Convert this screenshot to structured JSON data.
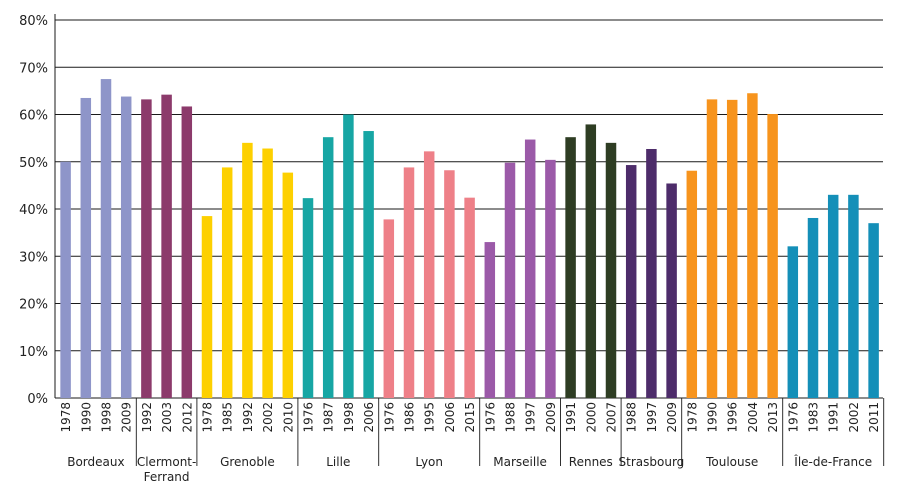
{
  "chart_data": {
    "type": "bar",
    "ylim": [
      0,
      80
    ],
    "y_ticks": [
      "0%",
      "10%",
      "20%",
      "30%",
      "40%",
      "50%",
      "60%",
      "70%",
      "80%"
    ],
    "grid": true,
    "groups": [
      {
        "name": "Bordeaux",
        "color": "#8e95c9",
        "years": [
          "1978",
          "1990",
          "1998",
          "2009"
        ],
        "values": [
          50,
          63.5,
          67.5,
          63.8
        ]
      },
      {
        "name": "Clermont-Ferrand",
        "name_lines": [
          "Clermont-",
          "Ferrand"
        ],
        "color": "#8c3a6b",
        "years": [
          "1992",
          "2003",
          "2012"
        ],
        "values": [
          63.2,
          64.2,
          61.7
        ]
      },
      {
        "name": "Grenoble",
        "color": "#fdd000",
        "years": [
          "1978",
          "1985",
          "1992",
          "2002",
          "2010"
        ],
        "values": [
          38.5,
          48.8,
          54,
          52.8,
          47.7
        ]
      },
      {
        "name": "Lille",
        "color": "#17a6a4",
        "years": [
          "1976",
          "1987",
          "1998",
          "2006"
        ],
        "values": [
          42.3,
          55.2,
          60,
          56.5
        ]
      },
      {
        "name": "Lyon",
        "color": "#ee8088",
        "years": [
          "1976",
          "1986",
          "1995",
          "2006",
          "2015"
        ],
        "values": [
          37.8,
          48.8,
          52.2,
          48.2,
          42.4
        ]
      },
      {
        "name": "Marseille",
        "color": "#9b5aa8",
        "years": [
          "1976",
          "1988",
          "1997",
          "2009"
        ],
        "values": [
          33,
          49.8,
          54.7,
          50.4
        ]
      },
      {
        "name": "Rennes",
        "color": "#2e3d23",
        "years": [
          "1991",
          "2000",
          "2007"
        ],
        "values": [
          55.2,
          57.9,
          54
        ]
      },
      {
        "name": "Strasbourg",
        "color": "#4d2c6a",
        "years": [
          "1988",
          "1997",
          "2009"
        ],
        "values": [
          49.3,
          52.7,
          45.4
        ]
      },
      {
        "name": "Toulouse",
        "color": "#f7941d",
        "years": [
          "1978",
          "1990",
          "1996",
          "2004",
          "2013"
        ],
        "values": [
          48.1,
          63.2,
          63.1,
          64.5,
          60.1
        ]
      },
      {
        "name": "Île-de-France",
        "color": "#148fb8",
        "years": [
          "1976",
          "1983",
          "1991",
          "2002",
          "2011"
        ],
        "values": [
          32.1,
          38.1,
          43,
          43,
          37
        ]
      }
    ]
  }
}
